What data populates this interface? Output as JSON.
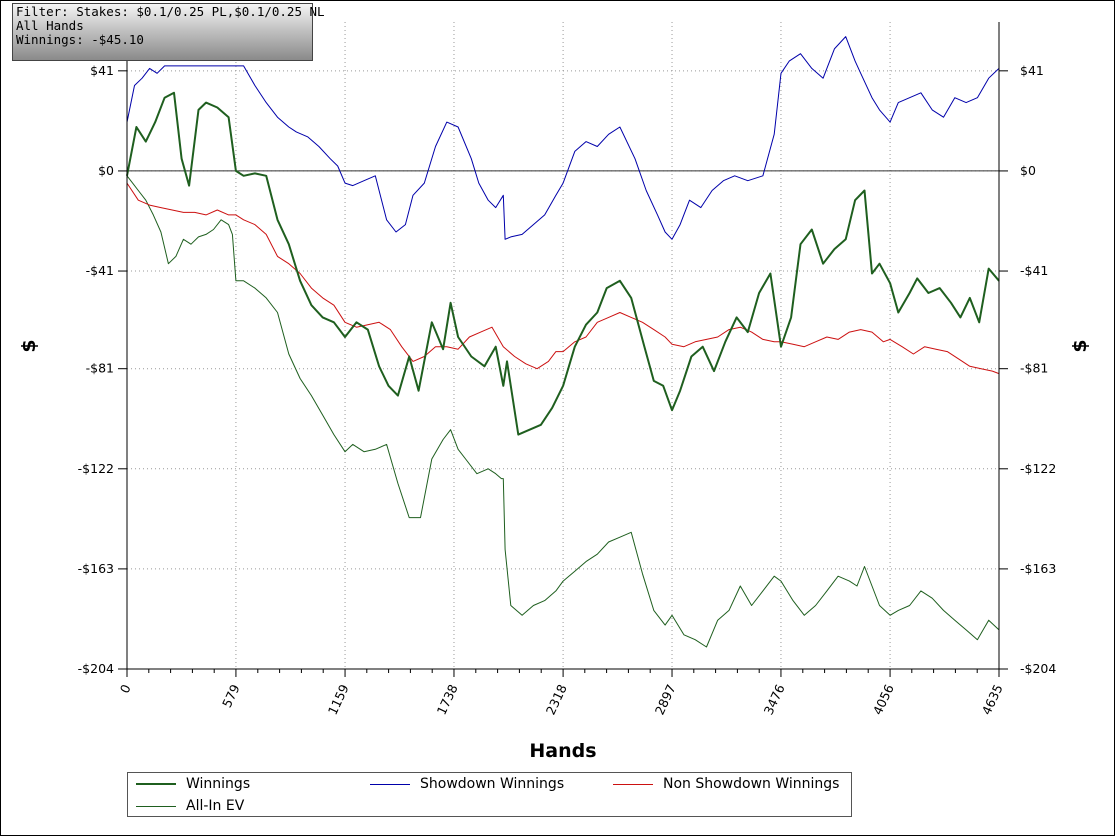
{
  "filter": {
    "line1": "Filter: Stakes: $0.1/0.25 PL,$0.1/0.25 NL",
    "line2": "All Hands",
    "line3": "Winnings: -$45.10"
  },
  "chart_data": {
    "type": "line",
    "xlabel": "Hands",
    "ylabel": "$",
    "xlim": [
      0,
      4635
    ],
    "ylim": [
      -204,
      61
    ],
    "x_ticks": [
      "0",
      "579",
      "1159",
      "1738",
      "2318",
      "2897",
      "3476",
      "4056",
      "4635"
    ],
    "y_ticks": [
      {
        "value": 41,
        "label": "$41"
      },
      {
        "value": 0,
        "label": "$0"
      },
      {
        "value": -41,
        "label": "-$41"
      },
      {
        "value": -81,
        "label": "-$81"
      },
      {
        "value": -122,
        "label": "-$122"
      },
      {
        "value": -163,
        "label": "-$163"
      },
      {
        "value": -204,
        "label": "-$204"
      }
    ],
    "grid": true,
    "legend_position": "bottom",
    "series": [
      {
        "name": "Winnings",
        "color": "#1f5f1f",
        "width": 2,
        "x": [
          0,
          50,
          100,
          150,
          200,
          250,
          290,
          330,
          380,
          420,
          480,
          540,
          579,
          620,
          680,
          740,
          800,
          860,
          920,
          980,
          1040,
          1100,
          1159,
          1220,
          1280,
          1340,
          1390,
          1440,
          1500,
          1550,
          1620,
          1680,
          1720,
          1760,
          1830,
          1900,
          1960,
          2000,
          2020,
          2080,
          2140,
          2200,
          2260,
          2318,
          2380,
          2440,
          2500,
          2550,
          2620,
          2680,
          2750,
          2800,
          2850,
          2897,
          2940,
          3000,
          3060,
          3120,
          3180,
          3240,
          3300,
          3360,
          3420,
          3476,
          3530,
          3580,
          3640,
          3700,
          3760,
          3820,
          3870,
          3920,
          3960,
          4000,
          4056,
          4100,
          4160,
          4200,
          4260,
          4320,
          4380,
          4430,
          4480,
          4530,
          4580,
          4635
        ],
        "y": [
          -2,
          18,
          12,
          20,
          30,
          32,
          5,
          -6,
          25,
          28,
          26,
          22,
          0,
          -2,
          -1,
          -2,
          -20,
          -30,
          -45,
          -55,
          -60,
          -62,
          -68,
          -62,
          -65,
          -80,
          -88,
          -92,
          -76,
          -90,
          -62,
          -73,
          -54,
          -68,
          -76,
          -80,
          -72,
          -88,
          -78,
          -108,
          -106,
          -104,
          -97,
          -88,
          -72,
          -63,
          -58,
          -48,
          -45,
          -52,
          -72,
          -86,
          -88,
          -98,
          -90,
          -76,
          -72,
          -82,
          -70,
          -60,
          -66,
          -50,
          -42,
          -72,
          -60,
          -30,
          -24,
          -38,
          -32,
          -28,
          -12,
          -8,
          -42,
          -38,
          -46,
          -58,
          -50,
          -44,
          -50,
          -48,
          -54,
          -60,
          -52,
          -62,
          -40,
          -45
        ]
      },
      {
        "name": "Showdown Winnings",
        "color": "#0000aa",
        "width": 1,
        "x": [
          0,
          40,
          80,
          120,
          160,
          200,
          240,
          280,
          320,
          380,
          420,
          480,
          540,
          579,
          620,
          680,
          740,
          800,
          860,
          900,
          960,
          1020,
          1080,
          1120,
          1159,
          1200,
          1260,
          1320,
          1380,
          1430,
          1480,
          1520,
          1580,
          1640,
          1700,
          1760,
          1830,
          1870,
          1920,
          1960,
          2000,
          2010,
          2040,
          2100,
          2160,
          2220,
          2280,
          2318,
          2380,
          2440,
          2500,
          2560,
          2620,
          2700,
          2760,
          2820,
          2860,
          2897,
          2940,
          2990,
          3050,
          3110,
          3170,
          3230,
          3300,
          3380,
          3440,
          3476,
          3520,
          3580,
          3640,
          3700,
          3760,
          3820,
          3870,
          3900,
          3960,
          4000,
          4056,
          4100,
          4160,
          4220,
          4280,
          4340,
          4400,
          4460,
          4520,
          4580,
          4635
        ],
        "y": [
          20,
          35,
          38,
          42,
          40,
          43,
          43,
          43,
          43,
          43,
          43,
          43,
          43,
          43,
          43,
          35,
          28,
          22,
          18,
          16,
          14,
          10,
          5,
          2,
          -5,
          -6,
          -4,
          -2,
          -20,
          -25,
          -22,
          -10,
          -5,
          10,
          20,
          18,
          5,
          -5,
          -12,
          -15,
          -10,
          -28,
          -27,
          -26,
          -22,
          -18,
          -10,
          -5,
          8,
          12,
          10,
          15,
          18,
          5,
          -8,
          -18,
          -25,
          -28,
          -22,
          -12,
          -15,
          -8,
          -4,
          -2,
          -4,
          -2,
          15,
          40,
          45,
          48,
          42,
          38,
          50,
          55,
          45,
          40,
          30,
          25,
          20,
          28,
          30,
          32,
          25,
          22,
          30,
          28,
          30,
          38,
          42
        ]
      },
      {
        "name": "Non Showdown Winnings",
        "color": "#cc1111",
        "width": 1,
        "x": [
          0,
          60,
          120,
          180,
          240,
          300,
          360,
          420,
          480,
          540,
          579,
          620,
          680,
          740,
          800,
          860,
          920,
          980,
          1040,
          1100,
          1159,
          1220,
          1280,
          1340,
          1400,
          1460,
          1520,
          1580,
          1640,
          1700,
          1760,
          1820,
          1880,
          1940,
          2000,
          2060,
          2120,
          2180,
          2240,
          2280,
          2318,
          2380,
          2440,
          2500,
          2560,
          2620,
          2680,
          2740,
          2800,
          2860,
          2897,
          2960,
          3020,
          3080,
          3140,
          3200,
          3260,
          3320,
          3380,
          3440,
          3476,
          3540,
          3600,
          3660,
          3720,
          3780,
          3840,
          3900,
          3960,
          4020,
          4056,
          4120,
          4180,
          4240,
          4300,
          4360,
          4420,
          4480,
          4540,
          4600,
          4635
        ],
        "y": [
          -5,
          -12,
          -14,
          -15,
          -16,
          -17,
          -17,
          -18,
          -16,
          -18,
          -18,
          -20,
          -22,
          -26,
          -35,
          -38,
          -42,
          -48,
          -52,
          -55,
          -62,
          -64,
          -63,
          -62,
          -65,
          -72,
          -78,
          -76,
          -72,
          -72,
          -73,
          -68,
          -66,
          -64,
          -72,
          -76,
          -79,
          -81,
          -78,
          -74,
          -74,
          -70,
          -68,
          -62,
          -60,
          -58,
          -60,
          -62,
          -65,
          -68,
          -71,
          -72,
          -70,
          -69,
          -68,
          -65,
          -64,
          -66,
          -69,
          -70,
          -70,
          -71,
          -72,
          -70,
          -68,
          -69,
          -66,
          -65,
          -66,
          -70,
          -69,
          -72,
          -75,
          -72,
          -73,
          -74,
          -77,
          -80,
          -81,
          -82,
          -83
        ]
      },
      {
        "name": "All-In EV",
        "color": "#1f5f1f",
        "width": 1,
        "x": [
          0,
          30,
          60,
          100,
          140,
          180,
          220,
          260,
          300,
          340,
          380,
          420,
          460,
          500,
          540,
          560,
          579,
          620,
          680,
          740,
          800,
          860,
          920,
          980,
          1040,
          1100,
          1159,
          1200,
          1260,
          1320,
          1380,
          1440,
          1500,
          1560,
          1620,
          1680,
          1720,
          1760,
          1800,
          1860,
          1920,
          1960,
          1990,
          2000,
          2010,
          2040,
          2100,
          2160,
          2220,
          2280,
          2318,
          2380,
          2440,
          2500,
          2560,
          2620,
          2680,
          2740,
          2800,
          2860,
          2897,
          2960,
          3020,
          3080,
          3140,
          3200,
          3260,
          3320,
          3380,
          3440,
          3476,
          3540,
          3600,
          3660,
          3720,
          3780,
          3840,
          3880,
          3920,
          3960,
          4000,
          4056,
          4100,
          4160,
          4220,
          4280,
          4340,
          4400,
          4460,
          4520,
          4580,
          4635
        ],
        "y": [
          -2,
          -5,
          -8,
          -12,
          -18,
          -25,
          -38,
          -35,
          -28,
          -30,
          -27,
          -26,
          -24,
          -20,
          -22,
          -26,
          -45,
          -45,
          -48,
          -52,
          -58,
          -75,
          -85,
          -92,
          -100,
          -108,
          -115,
          -112,
          -115,
          -114,
          -112,
          -128,
          -142,
          -142,
          -118,
          -110,
          -106,
          -114,
          -118,
          -124,
          -122,
          -124,
          -126,
          -126,
          -155,
          -178,
          -182,
          -178,
          -176,
          -172,
          -168,
          -164,
          -160,
          -157,
          -152,
          -150,
          -148,
          -165,
          -180,
          -186,
          -182,
          -190,
          -192,
          -195,
          -184,
          -180,
          -170,
          -178,
          -172,
          -166,
          -168,
          -176,
          -182,
          -178,
          -172,
          -166,
          -168,
          -170,
          -162,
          -170,
          -178,
          -182,
          -180,
          -178,
          -172,
          -175,
          -180,
          -184,
          -188,
          -192,
          -184,
          -188
        ]
      }
    ]
  },
  "legend": {
    "winnings": "Winnings",
    "showdown": "Showdown Winnings",
    "nonshowdown": "Non Showdown Winnings",
    "allin": "All-In EV"
  }
}
